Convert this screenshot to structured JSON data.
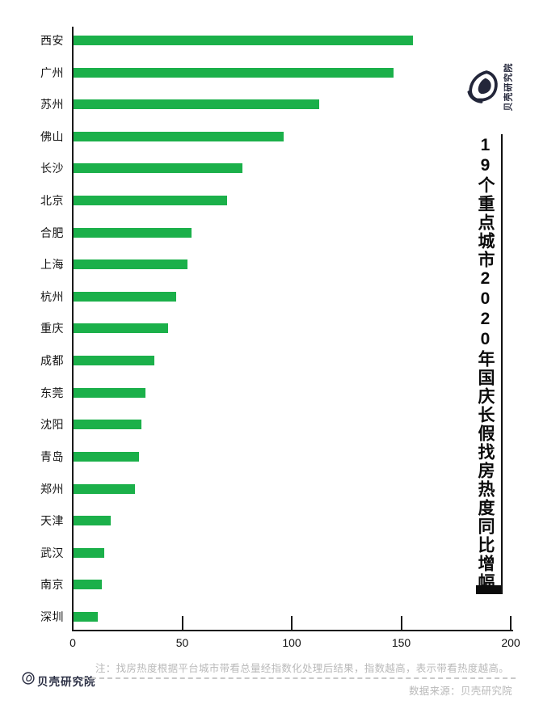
{
  "chart_data": {
    "type": "bar",
    "orientation": "horizontal",
    "title": "19个重点城市2020年国庆长假找房热度同比增幅",
    "categories": [
      "西安",
      "广州",
      "苏州",
      "佛山",
      "长沙",
      "北京",
      "合肥",
      "上海",
      "杭州",
      "重庆",
      "成都",
      "东莞",
      "沈阳",
      "青岛",
      "郑州",
      "天津",
      "武汉",
      "南京",
      "深圳"
    ],
    "values": [
      155,
      146,
      112,
      96,
      77,
      70,
      54,
      52,
      47,
      43,
      37,
      33,
      31,
      30,
      28,
      17,
      14,
      13,
      11
    ],
    "xlabel": "",
    "ylabel": "",
    "xlim": [
      0,
      200
    ],
    "x_ticks": [
      0,
      50,
      100,
      150,
      200
    ],
    "grid": false,
    "legend": null
  },
  "branding": {
    "header_logo_text": "贝壳研究院",
    "footer_logo_text": "贝壳研究院"
  },
  "footer": {
    "note": "注：找房热度根据平台城市带看总量经指数化处理后结果，指数越高，表示带看热度越高。",
    "source": "数据来源：贝壳研究院"
  },
  "colors": {
    "bar": "#1BB04A",
    "ink": "#23263a",
    "muted": "#b9b9b9",
    "axis": "#1a1a1a"
  }
}
